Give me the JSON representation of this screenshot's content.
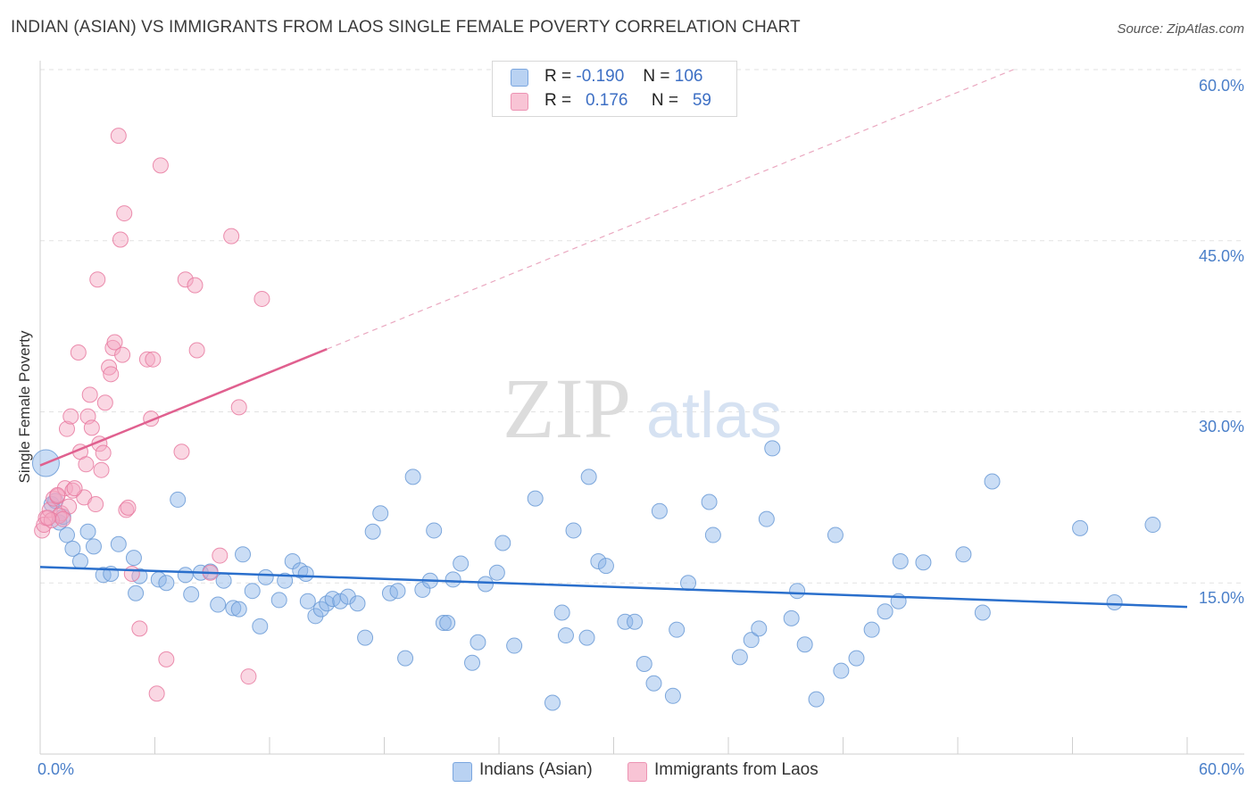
{
  "chart_data": {
    "type": "scatter",
    "title": "INDIAN (ASIAN) VS IMMIGRANTS FROM LAOS SINGLE FEMALE POVERTY CORRELATION CHART",
    "source": "Source: ZipAtlas.com",
    "xlabel": "",
    "ylabel": "Single Female Poverty",
    "xlim": [
      0,
      60
    ],
    "ylim": [
      0,
      60
    ],
    "x_tick_labels": {
      "left": "0.0%",
      "right": "60.0%"
    },
    "y_tick_labels": [
      "15.0%",
      "30.0%",
      "45.0%",
      "60.0%"
    ],
    "y_tick_values": [
      15,
      30,
      45,
      60
    ],
    "watermark": {
      "zip": "ZIP",
      "atlas": "atlas"
    },
    "legend_stats": [
      {
        "r_label": "R =",
        "r_value": "-0.190",
        "n_label": "N =",
        "n_value": "106"
      },
      {
        "r_label": "R =",
        "r_value": "0.176",
        "n_label": "N =",
        "n_value": "59"
      }
    ],
    "series": [
      {
        "name": "Indians (Asian)",
        "color": "#8ab4e8",
        "stroke": "#6a9ad6",
        "trend_color": "#2a6fcc",
        "trend": {
          "x1": 0,
          "y1": 16.4,
          "x2": 60,
          "y2": 12.9
        },
        "points": [
          [
            0.3,
            25.5
          ],
          [
            0.6,
            21.9
          ],
          [
            0.8,
            22.2
          ],
          [
            1.0,
            20.3
          ],
          [
            1.2,
            20.8
          ],
          [
            1.4,
            19.2
          ],
          [
            1.7,
            18.0
          ],
          [
            2.1,
            16.9
          ],
          [
            2.5,
            19.5
          ],
          [
            2.8,
            18.2
          ],
          [
            3.3,
            15.7
          ],
          [
            3.7,
            15.8
          ],
          [
            4.1,
            18.4
          ],
          [
            4.9,
            17.2
          ],
          [
            5.0,
            14.1
          ],
          [
            5.2,
            15.6
          ],
          [
            6.2,
            15.3
          ],
          [
            6.6,
            15.0
          ],
          [
            7.2,
            22.3
          ],
          [
            7.6,
            15.7
          ],
          [
            7.9,
            14.0
          ],
          [
            8.4,
            15.9
          ],
          [
            8.9,
            16.0
          ],
          [
            9.3,
            13.1
          ],
          [
            9.6,
            15.2
          ],
          [
            10.1,
            12.8
          ],
          [
            10.4,
            12.7
          ],
          [
            10.6,
            17.5
          ],
          [
            11.1,
            14.3
          ],
          [
            11.5,
            11.2
          ],
          [
            11.8,
            15.5
          ],
          [
            12.5,
            13.5
          ],
          [
            12.8,
            15.2
          ],
          [
            13.2,
            16.9
          ],
          [
            13.6,
            16.1
          ],
          [
            13.9,
            15.8
          ],
          [
            14.0,
            13.4
          ],
          [
            14.4,
            12.1
          ],
          [
            14.7,
            12.7
          ],
          [
            15.0,
            13.2
          ],
          [
            15.3,
            13.6
          ],
          [
            15.7,
            13.4
          ],
          [
            16.1,
            13.8
          ],
          [
            16.6,
            13.2
          ],
          [
            17.0,
            10.2
          ],
          [
            17.4,
            19.5
          ],
          [
            17.8,
            21.1
          ],
          [
            18.3,
            14.1
          ],
          [
            18.7,
            14.3
          ],
          [
            19.1,
            8.4
          ],
          [
            19.5,
            24.3
          ],
          [
            20.0,
            14.4
          ],
          [
            20.4,
            15.2
          ],
          [
            20.6,
            19.6
          ],
          [
            21.1,
            11.5
          ],
          [
            21.3,
            11.5
          ],
          [
            21.6,
            15.3
          ],
          [
            22.0,
            16.7
          ],
          [
            22.6,
            8.0
          ],
          [
            22.9,
            9.8
          ],
          [
            23.3,
            14.9
          ],
          [
            23.9,
            15.9
          ],
          [
            24.2,
            18.5
          ],
          [
            24.8,
            9.5
          ],
          [
            25.9,
            22.4
          ],
          [
            26.8,
            4.5
          ],
          [
            27.3,
            12.4
          ],
          [
            27.5,
            10.4
          ],
          [
            27.9,
            19.6
          ],
          [
            28.6,
            10.2
          ],
          [
            28.7,
            24.3
          ],
          [
            29.2,
            16.9
          ],
          [
            29.6,
            16.5
          ],
          [
            30.6,
            11.6
          ],
          [
            31.1,
            11.6
          ],
          [
            31.6,
            7.9
          ],
          [
            32.1,
            6.2
          ],
          [
            32.4,
            21.3
          ],
          [
            33.1,
            5.1
          ],
          [
            33.3,
            10.9
          ],
          [
            33.9,
            15.0
          ],
          [
            35.0,
            22.1
          ],
          [
            35.2,
            19.2
          ],
          [
            36.6,
            8.5
          ],
          [
            37.2,
            10.0
          ],
          [
            37.6,
            11.0
          ],
          [
            38.0,
            20.6
          ],
          [
            38.3,
            26.8
          ],
          [
            39.3,
            11.9
          ],
          [
            39.6,
            14.3
          ],
          [
            40.0,
            9.6
          ],
          [
            40.6,
            4.8
          ],
          [
            41.6,
            19.2
          ],
          [
            41.9,
            7.3
          ],
          [
            42.7,
            8.4
          ],
          [
            43.5,
            10.9
          ],
          [
            44.2,
            12.5
          ],
          [
            44.9,
            13.4
          ],
          [
            45.0,
            16.9
          ],
          [
            46.2,
            16.8
          ],
          [
            48.3,
            17.5
          ],
          [
            49.3,
            12.4
          ],
          [
            49.8,
            23.9
          ],
          [
            54.4,
            19.8
          ],
          [
            56.2,
            13.3
          ],
          [
            58.2,
            20.1
          ]
        ]
      },
      {
        "name": "Immigrants from Laos",
        "color": "#f4a7c0",
        "stroke": "#e87aa0",
        "trend_color": "#e0608f",
        "trend": {
          "x1": 0,
          "y1": 25.3,
          "x2": 15,
          "y2": 35.5
        },
        "trend_dashed": {
          "x1": 15,
          "y1": 35.5,
          "x2": 60,
          "y2": 66.2
        },
        "points": [
          [
            0.1,
            19.6
          ],
          [
            0.3,
            20.7
          ],
          [
            0.5,
            21.4
          ],
          [
            0.7,
            22.4
          ],
          [
            0.9,
            22.6
          ],
          [
            1.1,
            21.1
          ],
          [
            1.3,
            23.3
          ],
          [
            1.5,
            21.7
          ],
          [
            1.7,
            23.1
          ],
          [
            1.0,
            20.9
          ],
          [
            1.4,
            28.5
          ],
          [
            1.6,
            29.6
          ],
          [
            2.0,
            35.2
          ],
          [
            2.1,
            26.5
          ],
          [
            2.3,
            22.5
          ],
          [
            2.4,
            25.4
          ],
          [
            2.5,
            29.6
          ],
          [
            2.6,
            31.5
          ],
          [
            2.7,
            28.6
          ],
          [
            2.9,
            21.9
          ],
          [
            3.0,
            41.6
          ],
          [
            3.1,
            27.2
          ],
          [
            3.2,
            24.9
          ],
          [
            3.3,
            26.4
          ],
          [
            3.4,
            30.8
          ],
          [
            3.6,
            33.9
          ],
          [
            3.7,
            33.3
          ],
          [
            3.8,
            35.6
          ],
          [
            3.9,
            36.1
          ],
          [
            4.1,
            54.2
          ],
          [
            4.2,
            45.1
          ],
          [
            4.3,
            35.0
          ],
          [
            4.4,
            47.4
          ],
          [
            4.5,
            21.4
          ],
          [
            4.6,
            21.6
          ],
          [
            4.8,
            15.8
          ],
          [
            5.2,
            11.0
          ],
          [
            5.6,
            34.6
          ],
          [
            5.8,
            29.4
          ],
          [
            5.9,
            34.6
          ],
          [
            6.1,
            5.3
          ],
          [
            6.3,
            51.6
          ],
          [
            6.6,
            8.3
          ],
          [
            7.4,
            26.5
          ],
          [
            7.6,
            41.6
          ],
          [
            8.1,
            41.1
          ],
          [
            8.2,
            35.4
          ],
          [
            8.9,
            15.9
          ],
          [
            9.4,
            17.4
          ],
          [
            10.0,
            45.4
          ],
          [
            10.4,
            30.4
          ],
          [
            10.9,
            6.8
          ],
          [
            11.6,
            39.9
          ],
          [
            0.2,
            20.1
          ],
          [
            0.6,
            20.5
          ],
          [
            0.9,
            22.7
          ],
          [
            1.2,
            20.6
          ],
          [
            1.8,
            23.3
          ],
          [
            0.4,
            20.7
          ]
        ]
      }
    ]
  }
}
